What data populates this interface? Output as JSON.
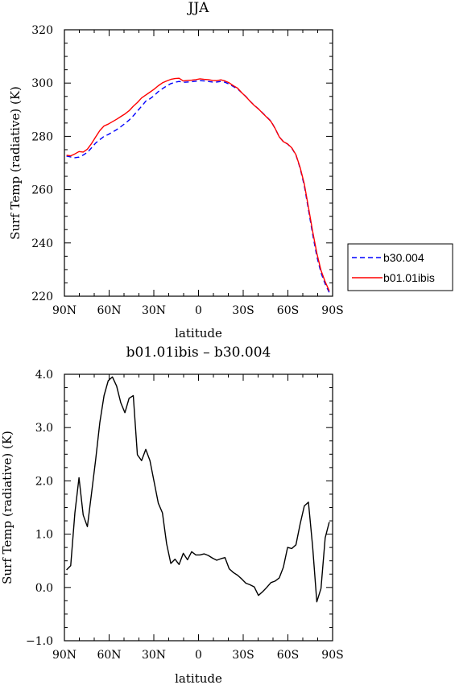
{
  "chart_data": [
    {
      "type": "line",
      "title": "JJA",
      "xlabel": "latitude",
      "ylabel": "Surf Temp (radiative) (K)",
      "xlim": [
        90,
        -90
      ],
      "ylim": [
        220,
        320
      ],
      "x_tick_values": [
        90,
        60,
        30,
        0,
        -30,
        -60,
        -90
      ],
      "x_tick_labels": [
        "90N",
        "60N",
        "30N",
        "0",
        "30S",
        "60S",
        "90S"
      ],
      "y_tick_values": [
        220,
        240,
        260,
        280,
        300,
        320
      ],
      "y_tick_labels": [
        "220",
        "240",
        "260",
        "280",
        "300",
        "320"
      ],
      "legend_position": "right",
      "series": [
        {
          "name": "b30.004",
          "color": "#0000ff",
          "style": "dashed",
          "x": [
            88.6,
            85.8,
            83.0,
            80.2,
            77.4,
            74.6,
            71.8,
            69.0,
            66.2,
            63.4,
            60.6,
            57.8,
            55.0,
            52.2,
            49.4,
            46.6,
            43.8,
            41.0,
            38.2,
            35.4,
            32.6,
            29.8,
            27.0,
            24.2,
            21.4,
            18.6,
            15.8,
            13.0,
            10.2,
            7.4,
            4.6,
            1.8,
            -1.0,
            -3.8,
            -6.6,
            -9.4,
            -12.2,
            -15.0,
            -17.8,
            -20.6,
            -23.4,
            -26.2,
            -29.0,
            -31.8,
            -34.6,
            -37.4,
            -40.2,
            -43.0,
            -45.8,
            -48.6,
            -51.4,
            -54.2,
            -57.0,
            -59.8,
            -62.6,
            -65.4,
            -68.2,
            -71.0,
            -73.8,
            -76.6,
            -79.4,
            -82.2,
            -85.0,
            -87.8
          ],
          "values": [
            272.6,
            272.3,
            272.0,
            272.2,
            273.0,
            274.0,
            275.7,
            277.5,
            278.8,
            280.0,
            280.7,
            281.6,
            282.5,
            283.6,
            284.8,
            286.1,
            287.7,
            289.5,
            291.3,
            293.2,
            294.1,
            295.3,
            296.8,
            297.9,
            298.9,
            299.8,
            300.3,
            300.6,
            300.3,
            300.4,
            300.5,
            300.7,
            300.9,
            300.8,
            300.6,
            300.4,
            300.4,
            300.6,
            300.3,
            299.6,
            298.7,
            297.8,
            296.4,
            295.0,
            293.2,
            291.7,
            290.3,
            288.8,
            287.3,
            285.7,
            283.0,
            279.8,
            278.0,
            277.1,
            275.6,
            273.0,
            268.0,
            261.4,
            252.5,
            243.3,
            235.0,
            228.8,
            224.6,
            221.4
          ]
        },
        {
          "name": "b01.01ibis",
          "color": "#ff0000",
          "style": "solid",
          "x": [
            88.6,
            85.8,
            83.0,
            80.2,
            77.4,
            74.6,
            71.8,
            69.0,
            66.2,
            63.4,
            60.6,
            57.8,
            55.0,
            52.2,
            49.4,
            46.6,
            43.8,
            41.0,
            38.2,
            35.4,
            32.6,
            29.8,
            27.0,
            24.2,
            21.4,
            18.6,
            15.8,
            13.0,
            10.2,
            7.4,
            4.6,
            1.8,
            -1.0,
            -3.8,
            -6.6,
            -9.4,
            -12.2,
            -15.0,
            -17.8,
            -20.6,
            -23.4,
            -26.2,
            -29.0,
            -31.8,
            -34.6,
            -37.4,
            -40.2,
            -43.0,
            -45.8,
            -48.6,
            -51.4,
            -54.2,
            -57.0,
            -59.8,
            -62.6,
            -65.4,
            -68.2,
            -71.0,
            -73.8,
            -76.6,
            -79.4,
            -82.2,
            -85.0,
            -87.8
          ],
          "values": [
            272.9,
            272.7,
            273.4,
            274.3,
            274.1,
            275.2,
            277.3,
            279.8,
            282.2,
            283.9,
            284.6,
            285.5,
            286.4,
            287.4,
            288.4,
            289.6,
            291.3,
            292.7,
            294.4,
            295.5,
            296.6,
            297.7,
            299.0,
            300.1,
            300.8,
            301.4,
            301.7,
            301.8,
            300.8,
            301.0,
            301.1,
            301.3,
            301.6,
            301.4,
            301.3,
            301.0,
            300.9,
            301.2,
            300.8,
            300.1,
            299.0,
            298.1,
            296.4,
            294.9,
            293.2,
            291.6,
            290.3,
            288.7,
            287.2,
            285.6,
            283.0,
            279.8,
            278.0,
            277.2,
            275.7,
            273.1,
            268.3,
            262.1,
            253.4,
            244.4,
            236.2,
            229.7,
            225.4,
            222.0
          ]
        }
      ]
    },
    {
      "type": "line",
      "title": "b01.01ibis – b30.004",
      "xlabel": "latitude",
      "ylabel": "Surf Temp (radiative) (K)",
      "xlim": [
        90,
        -90
      ],
      "ylim": [
        -1.0,
        4.0
      ],
      "x_tick_values": [
        90,
        60,
        30,
        0,
        -30,
        -60,
        -90
      ],
      "x_tick_labels": [
        "90N",
        "60N",
        "30N",
        "0",
        "30S",
        "60S",
        "90S"
      ],
      "y_tick_values": [
        -1.0,
        0.0,
        1.0,
        2.0,
        3.0,
        4.0
      ],
      "y_tick_labels": [
        "−1.0",
        "0.0",
        "1.0",
        "2.0",
        "3.0",
        "4.0"
      ],
      "series": [
        {
          "color": "#000000",
          "style": "solid",
          "x": [
            88.6,
            85.8,
            83.0,
            80.2,
            77.4,
            74.6,
            71.8,
            69.0,
            66.2,
            63.4,
            60.6,
            57.8,
            55.0,
            52.2,
            49.4,
            46.6,
            43.8,
            41.0,
            38.2,
            35.4,
            32.6,
            29.8,
            27.0,
            24.2,
            21.4,
            18.6,
            15.8,
            13.0,
            10.2,
            7.4,
            4.6,
            1.8,
            -1.0,
            -3.8,
            -6.6,
            -9.4,
            -12.2,
            -15.0,
            -17.8,
            -20.6,
            -23.4,
            -26.2,
            -29.0,
            -31.8,
            -34.6,
            -37.4,
            -40.2,
            -43.0,
            -45.8,
            -48.6,
            -51.4,
            -54.2,
            -57.0,
            -59.8,
            -62.6,
            -65.4,
            -68.2,
            -71.0,
            -73.8,
            -76.6,
            -79.4,
            -82.2,
            -85.0,
            -87.8
          ],
          "values": [
            0.33,
            0.41,
            1.4,
            2.06,
            1.36,
            1.14,
            1.77,
            2.4,
            3.1,
            3.6,
            3.88,
            3.95,
            3.78,
            3.47,
            3.28,
            3.55,
            3.6,
            2.49,
            2.38,
            2.59,
            2.38,
            1.98,
            1.58,
            1.4,
            0.82,
            0.45,
            0.53,
            0.43,
            0.64,
            0.52,
            0.67,
            0.61,
            0.61,
            0.63,
            0.6,
            0.55,
            0.51,
            0.54,
            0.56,
            0.35,
            0.28,
            0.23,
            0.16,
            0.08,
            0.05,
            0.01,
            -0.15,
            -0.08,
            0.0,
            0.09,
            0.12,
            0.18,
            0.38,
            0.75,
            0.73,
            0.8,
            1.19,
            1.53,
            1.6,
            0.77,
            -0.27,
            -0.02,
            0.93,
            1.23
          ]
        }
      ]
    }
  ]
}
